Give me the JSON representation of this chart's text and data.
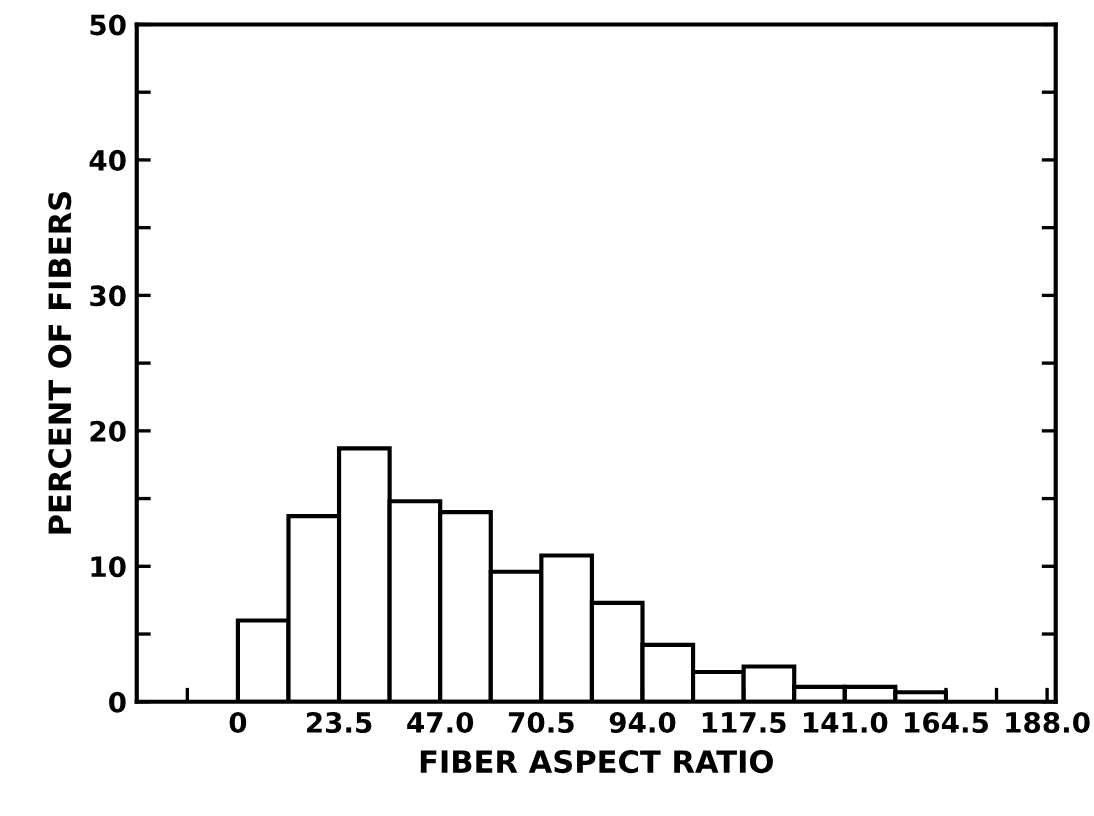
{
  "chart_data": {
    "type": "histogram",
    "xlabel": "FIBER ASPECT RATIO",
    "ylabel": "PERCENT OF FIBERS",
    "bins": [
      0,
      11.75,
      23.5,
      35.25,
      47,
      58.75,
      70.5,
      82.25,
      94,
      105.75,
      117.5,
      129.25,
      141,
      152.75,
      164.5
    ],
    "values": [
      6.0,
      13.7,
      18.7,
      14.8,
      14.0,
      9.6,
      10.8,
      7.3,
      4.2,
      2.2,
      2.6,
      1.1,
      1.1,
      0.7
    ],
    "color": "#ffffff",
    "xlim": [
      -23.5,
      190
    ],
    "ylim": [
      0,
      50
    ],
    "xticks": [
      {
        "value": -11.75,
        "label": null
      },
      0,
      23.5,
      {
        "value": 47,
        "label": "47.0"
      },
      70.5,
      {
        "value": 94,
        "label": "94.0"
      },
      117.5,
      {
        "value": 141,
        "label": "141.0"
      },
      164.5,
      {
        "value": 176.25,
        "label": null
      },
      {
        "value": 188,
        "label": "188.0"
      }
    ],
    "yticks": [
      0,
      {
        "value": 5,
        "label": null
      },
      10,
      {
        "value": 15,
        "label": null
      },
      20,
      {
        "value": 25,
        "label": null
      },
      30,
      {
        "value": 35,
        "label": null
      },
      40,
      {
        "value": 45,
        "label": null
      },
      50
    ],
    "grid": false
  }
}
